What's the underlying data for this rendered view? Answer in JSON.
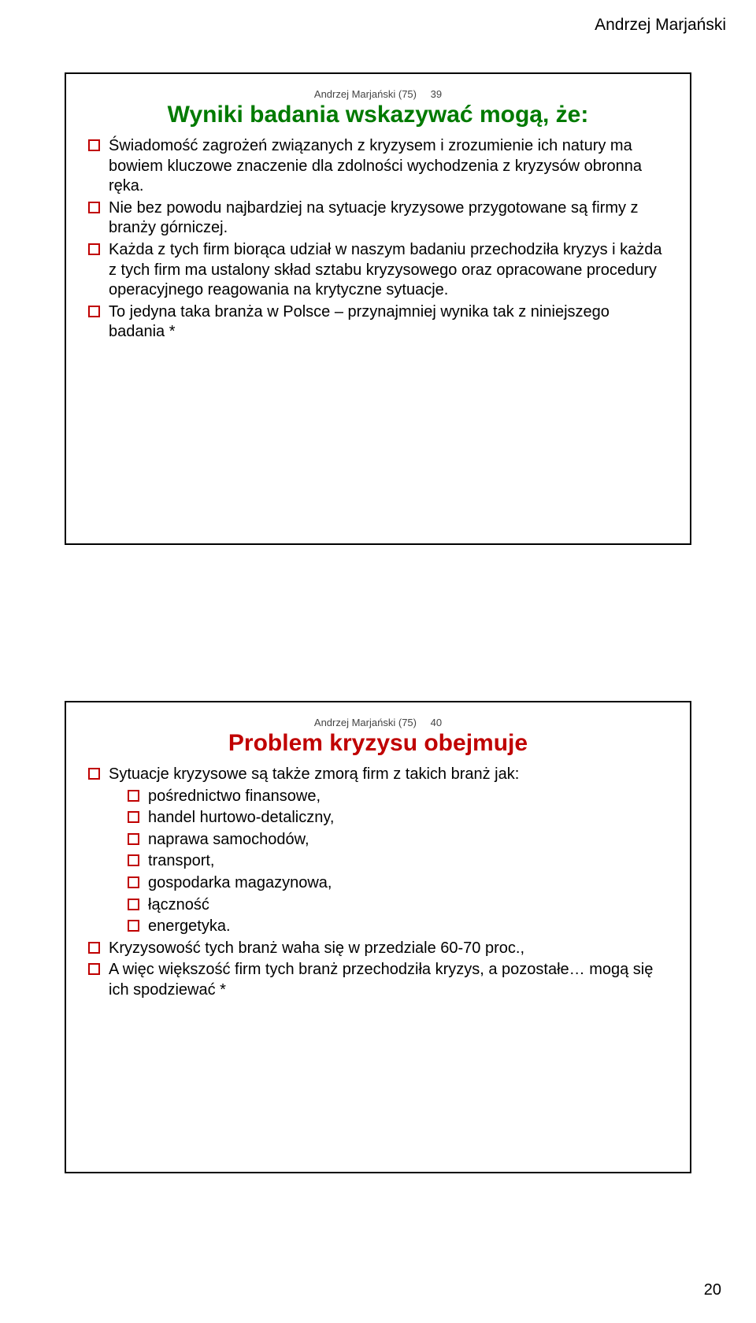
{
  "header": "Andrzej Marjański",
  "pageNumber": "20",
  "slides": [
    {
      "meta": {
        "author": "Andrzej Marjański",
        "total": "(75)",
        "num": "39"
      },
      "title": "Wyniki badania wskazywać mogą, że:",
      "titleColor": "#007a00",
      "bullets": [
        "Świadomość zagrożeń związanych z kryzysem i zrozumienie ich natury ma bowiem kluczowe znaczenie dla zdolności wychodzenia z kryzysów obronna ręka.",
        "Nie bez powodu najbardziej na sytuacje kryzysowe przygotowane są firmy z branży górniczej.",
        "Każda z tych firm biorąca udział w naszym badaniu przechodziła kryzys i każda z tych firm ma ustalony skład sztabu kryzysowego oraz opracowane procedury operacyjnego reagowania na krytyczne sytuacje.",
        "To jedyna taka branża w Polsce – przynajmniej wynika tak z niniejszego badania *"
      ]
    },
    {
      "meta": {
        "author": "Andrzej Marjański",
        "total": "(75)",
        "num": "40"
      },
      "title": "Problem kryzysu obejmuje",
      "titleColor": "#c00000",
      "bullets": [
        {
          "text": "Sytuacje kryzysowe są także zmorą firm z takich branż jak:",
          "sub": [
            "pośrednictwo finansowe,",
            "handel hurtowo-detaliczny,",
            "naprawa samochodów,",
            "transport,",
            "gospodarka magazynowa,",
            "łączność",
            "energetyka."
          ]
        },
        {
          "text": "Kryzysowość tych branż waha się w przedziale 60-70 proc.,"
        },
        {
          "text": "A więc większość firm tych branż przechodziła kryzys, a pozostałe… mogą się ich spodziewać   *"
        }
      ]
    }
  ]
}
